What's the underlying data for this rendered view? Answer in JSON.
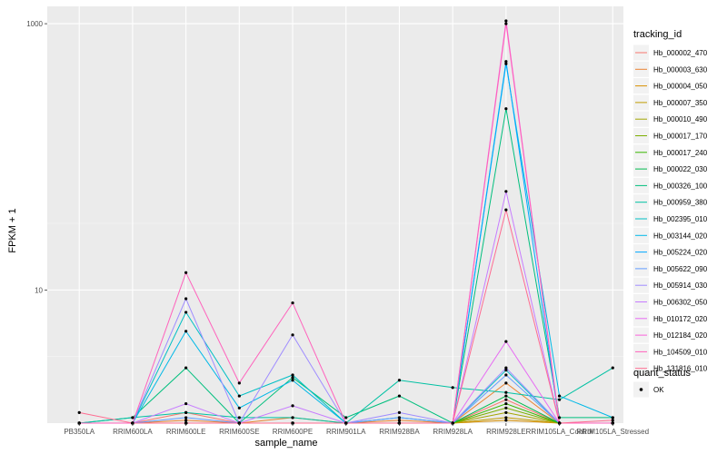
{
  "chart_data": {
    "type": "line",
    "xlabel": "sample_name",
    "ylabel": "FPKM + 1",
    "y_scale": "log10",
    "ylim": [
      1.0,
      1350
    ],
    "y_ticks": [
      {
        "value": 10,
        "label": "10"
      },
      {
        "value": 1000,
        "label": "1000"
      }
    ],
    "grid": true,
    "background": "#ebebeb",
    "legend_position": "right",
    "categories": [
      "PB350LA",
      "RRIM600LA",
      "RRIM600LE",
      "RRIM600SE",
      "RRIM600PE",
      "RRIM901LA",
      "RRIM928BA",
      "RRIM928LA",
      "RRIM928LE",
      "RRIM105LA_Control",
      "RRIM105LA_Stressed"
    ],
    "legend": {
      "title": "tracking_id",
      "items": [
        "Hb_000002_470",
        "Hb_000003_630",
        "Hb_000004_050",
        "Hb_000007_350",
        "Hb_000010_490",
        "Hb_000017_170",
        "Hb_000017_240",
        "Hb_000022_030",
        "Hb_000326_100",
        "Hb_000959_380",
        "Hb_002395_010",
        "Hb_003144_020",
        "Hb_005224_020",
        "Hb_005622_090",
        "Hb_005914_030",
        "Hb_006302_050",
        "Hb_010172_020",
        "Hb_012184_020",
        "Hb_104509_010",
        "Hb_131816_010"
      ]
    },
    "legend2": {
      "title": "quant_status",
      "items": [
        "OK"
      ]
    },
    "series": [
      {
        "name": "Hb_000002_470",
        "color": "#F8766D",
        "values": [
          1.0,
          1.0,
          1.2,
          1.0,
          1.0,
          1.0,
          1.0,
          1.0,
          1.5,
          1.0,
          1.0
        ]
      },
      {
        "name": "Hb_000003_630",
        "color": "#EA8331",
        "values": [
          1.0,
          1.0,
          1.05,
          1.0,
          1.1,
          1.0,
          1.05,
          1.0,
          2.0,
          1.0,
          1.0
        ]
      },
      {
        "name": "Hb_000004_050",
        "color": "#D89000",
        "values": [
          1.0,
          1.0,
          1.0,
          1.0,
          1.0,
          1.0,
          1.0,
          1.0,
          1.05,
          1.0,
          1.0
        ]
      },
      {
        "name": "Hb_000007_350",
        "color": "#C09B00",
        "values": [
          1.0,
          1.0,
          1.0,
          1.0,
          1.0,
          1.0,
          1.0,
          1.0,
          1.1,
          1.0,
          1.0
        ]
      },
      {
        "name": "Hb_000010_490",
        "color": "#A3A500",
        "values": [
          1.0,
          1.0,
          1.0,
          1.0,
          1.0,
          1.0,
          1.0,
          1.0,
          1.2,
          1.0,
          1.0
        ]
      },
      {
        "name": "Hb_000017_170",
        "color": "#7CAE00",
        "values": [
          1.0,
          1.0,
          1.0,
          1.0,
          1.0,
          1.0,
          1.0,
          1.0,
          1.3,
          1.0,
          1.0
        ]
      },
      {
        "name": "Hb_000017_240",
        "color": "#39B600",
        "values": [
          1.0,
          1.0,
          1.0,
          1.0,
          1.0,
          1.0,
          1.0,
          1.0,
          1.4,
          1.0,
          1.0
        ]
      },
      {
        "name": "Hb_000022_030",
        "color": "#00BB4E",
        "values": [
          1.0,
          1.0,
          1.0,
          1.0,
          1.0,
          1.0,
          1.0,
          1.0,
          1.6,
          1.0,
          1.0
        ]
      },
      {
        "name": "Hb_000326_100",
        "color": "#00BF7D",
        "values": [
          1.0,
          1.1,
          2.6,
          1.0,
          2.2,
          1.1,
          1.6,
          1.0,
          230,
          1.1,
          1.1
        ]
      },
      {
        "name": "Hb_000959_380",
        "color": "#00C1A3",
        "values": [
          1.0,
          1.1,
          1.2,
          1.1,
          1.1,
          1.0,
          2.1,
          1.85,
          1.7,
          1.5,
          2.6
        ]
      },
      {
        "name": "Hb_002395_010",
        "color": "#00BFC4",
        "values": [
          1.0,
          1.0,
          6.8,
          1.6,
          2.3,
          1.0,
          1.1,
          1.0,
          2.5,
          1.0,
          1.0
        ]
      },
      {
        "name": "Hb_003144_020",
        "color": "#00B8E7",
        "values": [
          1.0,
          1.0,
          4.9,
          1.3,
          2.1,
          1.0,
          1.0,
          1.0,
          500,
          1.6,
          1.1
        ]
      },
      {
        "name": "Hb_005224_020",
        "color": "#00A9FF",
        "values": [
          1.0,
          1.0,
          1.0,
          1.0,
          1.0,
          1.0,
          1.0,
          1.0,
          520,
          1.0,
          1.0
        ]
      },
      {
        "name": "Hb_005622_090",
        "color": "#619CFF",
        "values": [
          1.0,
          1.0,
          1.1,
          1.0,
          1.0,
          1.0,
          1.1,
          1.0,
          2.3,
          1.0,
          1.0
        ]
      },
      {
        "name": "Hb_005914_030",
        "color": "#9F8CFF",
        "values": [
          1.0,
          1.0,
          8.6,
          1.0,
          4.6,
          1.0,
          1.2,
          1.0,
          2.6,
          1.0,
          1.0
        ]
      },
      {
        "name": "Hb_006302_050",
        "color": "#C77CFF",
        "values": [
          1.0,
          1.0,
          1.4,
          1.0,
          1.35,
          1.0,
          1.0,
          1.0,
          55,
          1.0,
          1.0
        ]
      },
      {
        "name": "Hb_010172_020",
        "color": "#E76BF3",
        "values": [
          1.0,
          1.0,
          1.0,
          1.0,
          1.0,
          1.0,
          1.0,
          1.0,
          4.1,
          1.0,
          1.0
        ]
      },
      {
        "name": "Hb_012184_020",
        "color": "#FA62DB",
        "values": [
          1.0,
          1.0,
          1.0,
          1.0,
          1.0,
          1.0,
          1.0,
          1.0,
          1050,
          1.0,
          1.0
        ]
      },
      {
        "name": "Hb_104509_010",
        "color": "#FF62BC",
        "values": [
          1.0,
          1.0,
          13.5,
          2.0,
          8.0,
          1.0,
          1.0,
          1.0,
          1000,
          1.0,
          1.0
        ]
      },
      {
        "name": "Hb_131816_010",
        "color": "#FF6C91",
        "values": [
          1.2,
          1.0,
          1.0,
          1.0,
          1.0,
          1.0,
          1.0,
          1.0,
          40,
          1.0,
          1.05
        ]
      }
    ]
  }
}
